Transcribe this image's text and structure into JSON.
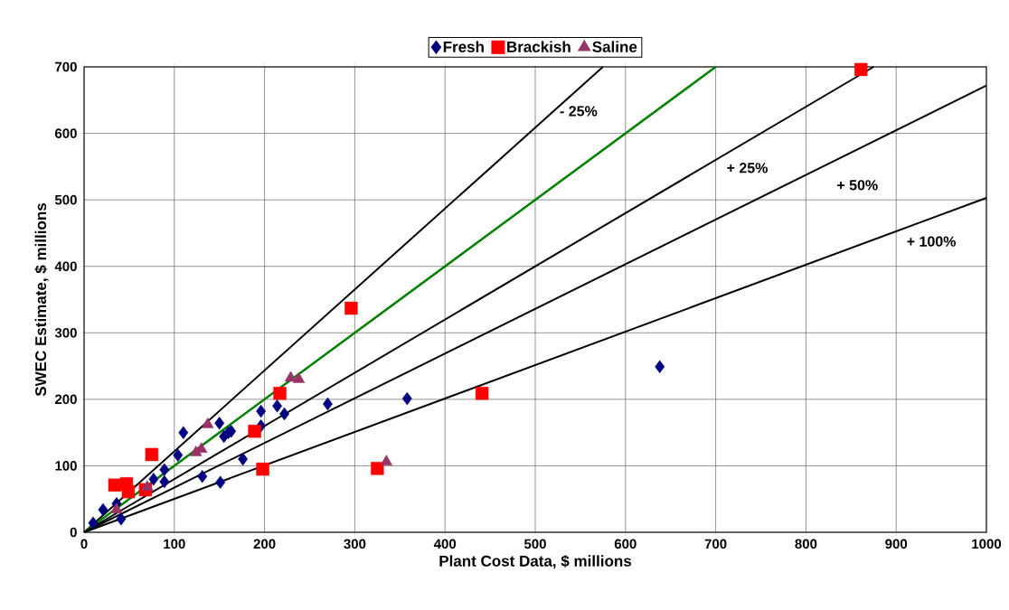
{
  "chart_data": {
    "type": "scatter",
    "xlabel": "Plant Cost Data, $ millions",
    "ylabel": "SWEC Estimate, $ millions",
    "xlim": [
      0,
      1000
    ],
    "ylim": [
      0,
      700
    ],
    "xticks": [
      0,
      100,
      200,
      300,
      400,
      500,
      600,
      700,
      800,
      900,
      1000
    ],
    "yticks": [
      0,
      100,
      200,
      300,
      400,
      500,
      600,
      700
    ],
    "grid": true,
    "legend": "top",
    "series": [
      {
        "name": "Fresh",
        "color": "#000080",
        "marker": "diamond",
        "x": [
          10,
          21,
          36,
          41,
          77,
          89,
          89,
          104,
          110,
          131,
          151,
          150,
          155,
          163,
          160,
          176,
          196,
          196,
          214,
          222,
          270,
          358,
          638
        ],
        "values": [
          14,
          34,
          43,
          20,
          80,
          94,
          76,
          116,
          150,
          84,
          75,
          164,
          144,
          152,
          150,
          110,
          182,
          160,
          190,
          178,
          193,
          201,
          249
        ]
      },
      {
        "name": "Brackish",
        "color": "#ff0000",
        "marker": "square",
        "x": [
          34,
          47,
          49,
          68,
          75,
          189,
          198,
          217,
          296,
          325,
          441,
          861
        ],
        "values": [
          71,
          73,
          61,
          64,
          117,
          152,
          95,
          209,
          337,
          96,
          209,
          696
        ]
      },
      {
        "name": "Saline",
        "color": "#993366",
        "marker": "triangle",
        "x": [
          36,
          70,
          124,
          130,
          137,
          229,
          238,
          335
        ],
        "values": [
          34,
          68,
          120,
          125,
          162,
          232,
          230,
          106
        ]
      },
      {
        "type": "line",
        "color": "#000000",
        "marker": "none",
        "x": [
          0,
          575
        ],
        "values": [
          0,
          700
        ]
      },
      {
        "type": "line",
        "color": "#008000",
        "marker": "none",
        "x": [
          0,
          700
        ],
        "values": [
          0,
          700
        ]
      },
      {
        "type": "line",
        "color": "#000000",
        "marker": "none",
        "x": [
          0,
          875
        ],
        "values": [
          0,
          700
        ]
      },
      {
        "type": "line",
        "color": "#000000",
        "marker": "none",
        "x": [
          0,
          1000
        ],
        "values": [
          0,
          672
        ]
      },
      {
        "type": "line",
        "color": "#000000",
        "marker": "none",
        "x": [
          0,
          1000
        ],
        "values": [
          0,
          503
        ]
      }
    ],
    "annotations": [
      "- 25%",
      "+ 25%",
      "+ 50%",
      "+ 100%"
    ]
  }
}
